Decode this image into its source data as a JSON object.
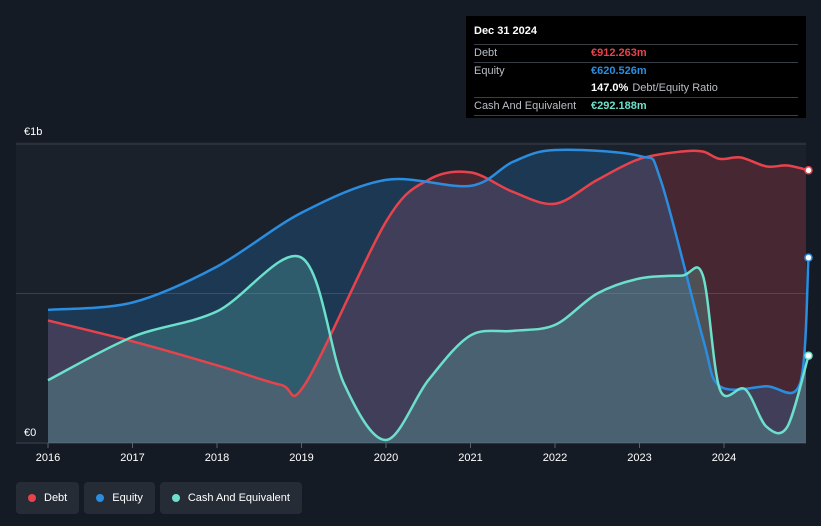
{
  "tooltip": {
    "date": "Dec 31 2024",
    "debt_label": "Debt",
    "debt_value": "€912.263m",
    "equity_label": "Equity",
    "equity_value": "€620.526m",
    "ratio_value": "147.0%",
    "ratio_label": "Debt/Equity Ratio",
    "cash_label": "Cash And Equivalent",
    "cash_value": "€292.188m"
  },
  "legend": [
    {
      "label": "Debt",
      "color": "#e8434c"
    },
    {
      "label": "Equity",
      "color": "#2a8de0"
    },
    {
      "label": "Cash And Equivalent",
      "color": "#6ce0cc"
    }
  ],
  "colors": {
    "debt": "#e8434c",
    "equity": "#2a8de0",
    "cash": "#6ce0cc",
    "background": "#151b24"
  },
  "chart_data": {
    "type": "area",
    "y_labels": [
      "€1b",
      "€0"
    ],
    "x_tick_labels": [
      "2016",
      "2017",
      "2018",
      "2019",
      "2020",
      "2021",
      "2022",
      "2023",
      "2024"
    ],
    "xlim": [
      2016.0,
      2025.0
    ],
    "ylim": [
      0,
      1000
    ],
    "grid": true,
    "legend_position": "bottom-left",
    "series": [
      {
        "name": "Debt",
        "x": [
          2016.0,
          2017.0,
          2018.0,
          2018.75,
          2019.05,
          2020.0,
          2020.5,
          2021.0,
          2021.5,
          2022.0,
          2022.5,
          2023.0,
          2023.5,
          2023.75,
          2023.95,
          2024.2,
          2024.5,
          2024.75,
          2025.0
        ],
        "values": [
          410,
          340,
          260,
          195,
          200,
          740,
          880,
          905,
          840,
          800,
          880,
          950,
          975,
          975,
          950,
          955,
          925,
          928,
          912
        ]
      },
      {
        "name": "Equity",
        "x": [
          2016.0,
          2017.0,
          2018.0,
          2019.0,
          2020.0,
          2021.0,
          2021.5,
          2022.0,
          2023.0,
          2023.25,
          2023.75,
          2023.95,
          2024.5,
          2024.9,
          2025.0
        ],
        "values": [
          445,
          470,
          590,
          770,
          880,
          860,
          940,
          980,
          960,
          880,
          350,
          190,
          190,
          200,
          620
        ]
      },
      {
        "name": "Cash And Equivalent",
        "x": [
          2016.0,
          2017.0,
          2018.0,
          2019.0,
          2019.5,
          2020.0,
          2020.5,
          2021.0,
          2021.5,
          2022.0,
          2022.5,
          2023.0,
          2023.5,
          2023.75,
          2023.95,
          2024.25,
          2024.5,
          2024.75,
          2025.0
        ],
        "values": [
          210,
          355,
          440,
          620,
          200,
          10,
          210,
          360,
          375,
          395,
          500,
          550,
          560,
          560,
          180,
          180,
          55,
          55,
          292
        ]
      }
    ]
  }
}
